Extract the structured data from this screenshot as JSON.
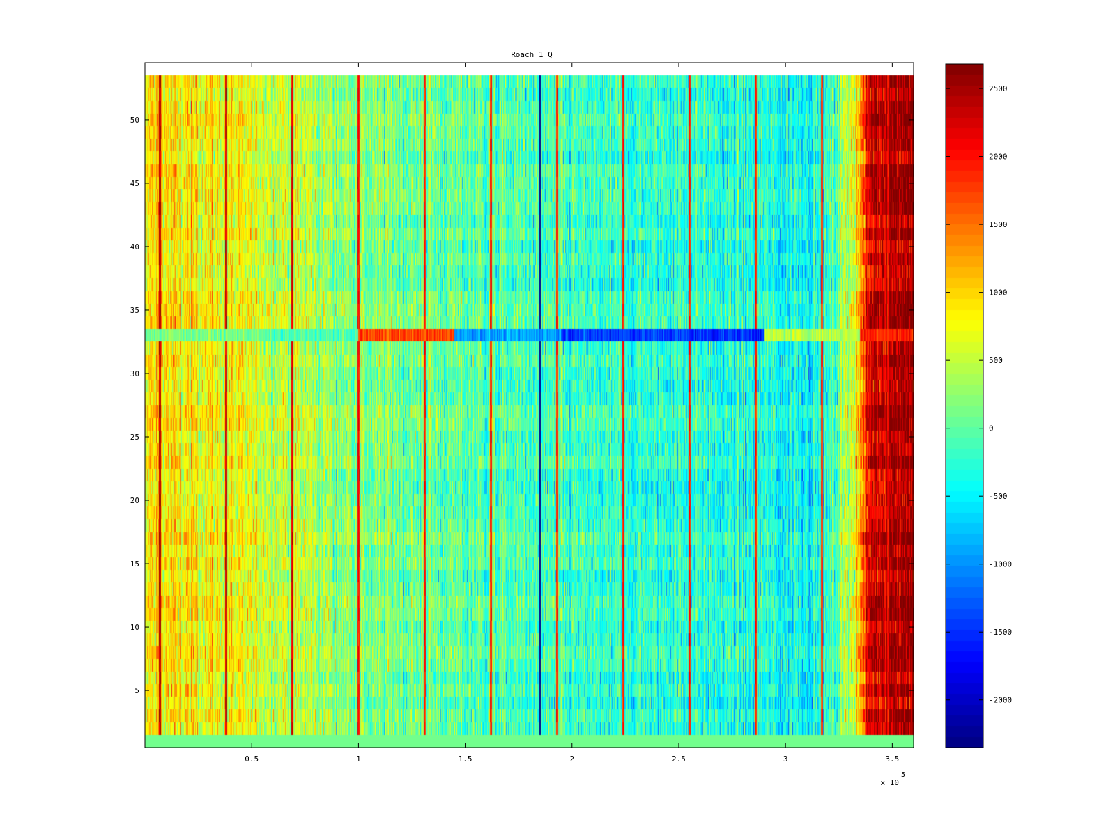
{
  "chart_data": {
    "type": "heatmap",
    "title": "Roach 1 Q",
    "xlabel": "",
    "ylabel": "",
    "x_range": [
      0,
      360000
    ],
    "y_range": [
      0.5,
      54.5
    ],
    "x_ticks": [
      50000,
      100000,
      150000,
      200000,
      250000,
      300000,
      350000
    ],
    "x_tick_labels": [
      "0.5",
      "1",
      "1.5",
      "2",
      "2.5",
      "3",
      "3.5"
    ],
    "x_exponent_label": "x 10",
    "x_exponent_power": "5",
    "y_ticks": [
      5,
      10,
      15,
      20,
      25,
      30,
      35,
      40,
      45,
      50
    ],
    "y_tick_labels": [
      "5",
      "10",
      "15",
      "20",
      "25",
      "30",
      "35",
      "40",
      "45",
      "50"
    ],
    "rows": 53,
    "row_min": 1,
    "row_max": 53,
    "colormap": "jet",
    "grid": false,
    "colorbar": {
      "range": [
        -2350,
        2680
      ],
      "ticks": [
        2500,
        2000,
        1500,
        1000,
        500,
        0,
        -500,
        -1000,
        -1500,
        -2000
      ],
      "tick_labels": [
        "2500",
        "2000",
        "1500",
        "1000",
        "500",
        "0",
        "-500",
        "-1000",
        "-1500",
        "-2000"
      ],
      "placement": "right"
    },
    "trend_profile": {
      "x": [
        0,
        40000,
        70000,
        100000,
        150000,
        200000,
        250000,
        300000,
        320000,
        333000,
        340000,
        360000
      ],
      "values": [
        900,
        750,
        500,
        150,
        0,
        -200,
        -250,
        -400,
        -350,
        800,
        2300,
        2550
      ]
    },
    "vertical_stripes": [
      {
        "x": 7000,
        "value": 2400
      },
      {
        "x": 38000,
        "value": 2300
      },
      {
        "x": 69000,
        "value": 2200
      },
      {
        "x": 100000,
        "value": 2000
      },
      {
        "x": 131000,
        "value": 1900
      },
      {
        "x": 162000,
        "value": 1900
      },
      {
        "x": 193000,
        "value": 1900
      },
      {
        "x": 224000,
        "value": 1900
      },
      {
        "x": 255000,
        "value": 1900
      },
      {
        "x": 286000,
        "value": 1900
      },
      {
        "x": 317000,
        "value": 1800
      },
      {
        "x": 348000,
        "value": 2000
      }
    ],
    "dark_line_x": 185000,
    "special_row": {
      "row": 33,
      "segments": [
        {
          "x": [
            0,
            55000
          ],
          "value": 150
        },
        {
          "x": [
            55000,
            100000
          ],
          "value": -100
        },
        {
          "x": [
            100000,
            145000
          ],
          "value": 1700
        },
        {
          "x": [
            145000,
            195000
          ],
          "value": -900
        },
        {
          "x": [
            195000,
            255000
          ],
          "value": -1400
        },
        {
          "x": [
            255000,
            290000
          ],
          "value": -1500
        },
        {
          "x": [
            290000,
            335000
          ],
          "value": 450
        },
        {
          "x": [
            335000,
            360000
          ],
          "value": 1900
        }
      ]
    },
    "constant_row": {
      "row": 1,
      "value": 100
    }
  }
}
